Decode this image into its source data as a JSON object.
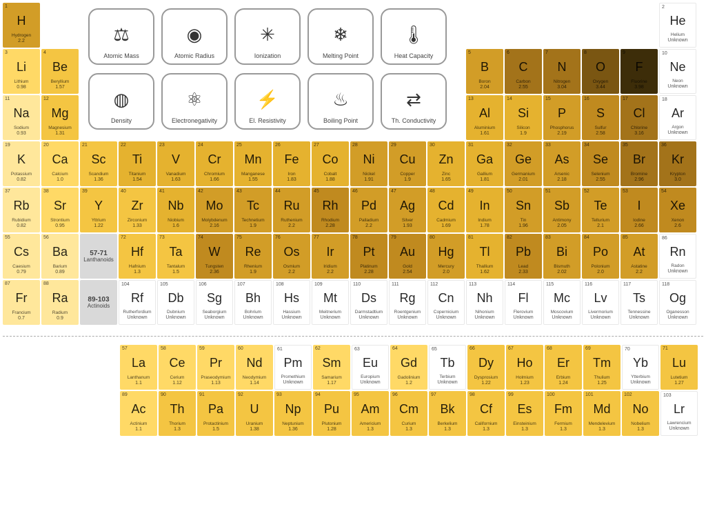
{
  "colors": {
    "white": "#ffffff",
    "grey": "#d9d9d9",
    "border": "#e8e8e8"
  },
  "shade_scale": {
    "0": "#ffffff",
    "1": "#fff1c9",
    "2": "#ffe79b",
    "3": "#ffd966",
    "4": "#f4c542",
    "5": "#e5b22f",
    "6": "#d29d27",
    "7": "#c08a1f",
    "8": "#a3731a",
    "9": "#7a5612",
    "10": "#3d2d09"
  },
  "properties": [
    {
      "label": "Atomic Mass",
      "icon": "⚖"
    },
    {
      "label": "Atomic Radius",
      "icon": "◉"
    },
    {
      "label": "Ionization",
      "icon": "✳"
    },
    {
      "label": "Melting Point",
      "icon": "❄"
    },
    {
      "label": "Heat Capacity",
      "icon": "🌡"
    },
    {
      "label": "Density",
      "icon": "◍"
    },
    {
      "label": "Electronegativity",
      "icon": "⚛"
    },
    {
      "label": "El. Resistivity",
      "icon": "⚡"
    },
    {
      "label": "Boiling Point",
      "icon": "♨"
    },
    {
      "label": "Th. Conductivity",
      "icon": "⇄"
    }
  ],
  "main": [
    [
      {
        "n": 1,
        "s": "H",
        "name": "Hydrogen",
        "v": "2.2",
        "shade": 6
      },
      null,
      null,
      null,
      null,
      null,
      null,
      null,
      null,
      null,
      null,
      null,
      null,
      null,
      null,
      null,
      null,
      {
        "n": 2,
        "s": "He",
        "name": "Helium",
        "v": "Unknown",
        "shade": 0
      }
    ],
    [
      {
        "n": 3,
        "s": "Li",
        "name": "Lithium",
        "v": "0.98",
        "shade": 3
      },
      {
        "n": 4,
        "s": "Be",
        "name": "Beryllium",
        "v": "1.57",
        "shade": 4
      },
      null,
      null,
      null,
      null,
      null,
      null,
      null,
      null,
      null,
      null,
      {
        "n": 5,
        "s": "B",
        "name": "Boron",
        "v": "2.04",
        "shade": 6
      },
      {
        "n": 6,
        "s": "C",
        "name": "Carbon",
        "v": "2.55",
        "shade": 8
      },
      {
        "n": 7,
        "s": "N",
        "name": "Nitrogen",
        "v": "3.04",
        "shade": 8
      },
      {
        "n": 8,
        "s": "O",
        "name": "Oxygen",
        "v": "3.44",
        "shade": 9
      },
      {
        "n": 9,
        "s": "F",
        "name": "Fluorine",
        "v": "3.98",
        "shade": 10
      },
      {
        "n": 10,
        "s": "Ne",
        "name": "Neon",
        "v": "Unknown",
        "shade": 0
      }
    ],
    [
      {
        "n": 11,
        "s": "Na",
        "name": "Sodium",
        "v": "0.93",
        "shade": 2
      },
      {
        "n": 12,
        "s": "Mg",
        "name": "Magnesium",
        "v": "1.31",
        "shade": 4
      },
      null,
      null,
      null,
      null,
      null,
      null,
      null,
      null,
      null,
      null,
      {
        "n": 13,
        "s": "Al",
        "name": "Aluminium",
        "v": "1.61",
        "shade": 5
      },
      {
        "n": 14,
        "s": "Si",
        "name": "Silicon",
        "v": "1.9",
        "shade": 5
      },
      {
        "n": 15,
        "s": "P",
        "name": "Phosphorus",
        "v": "2.19",
        "shade": 6
      },
      {
        "n": 16,
        "s": "S",
        "name": "Sulfur",
        "v": "2.58",
        "shade": 7
      },
      {
        "n": 17,
        "s": "Cl",
        "name": "Chlorine",
        "v": "3.16",
        "shade": 8
      },
      {
        "n": 18,
        "s": "Ar",
        "name": "Argon",
        "v": "Unknown",
        "shade": 0
      }
    ],
    [
      {
        "n": 19,
        "s": "K",
        "name": "Potassium",
        "v": "0.82",
        "shade": 2
      },
      {
        "n": 20,
        "s": "Ca",
        "name": "Calcium",
        "v": "1.0",
        "shade": 3
      },
      {
        "n": 21,
        "s": "Sc",
        "name": "Scandium",
        "v": "1.36",
        "shade": 4
      },
      {
        "n": 22,
        "s": "Ti",
        "name": "Titanium",
        "v": "1.54",
        "shade": 5
      },
      {
        "n": 23,
        "s": "V",
        "name": "Vanadium",
        "v": "1.63",
        "shade": 5
      },
      {
        "n": 24,
        "s": "Cr",
        "name": "Chromium",
        "v": "1.66",
        "shade": 5
      },
      {
        "n": 25,
        "s": "Mn",
        "name": "Manganese",
        "v": "1.55",
        "shade": 5
      },
      {
        "n": 26,
        "s": "Fe",
        "name": "Iron",
        "v": "1.83",
        "shade": 5
      },
      {
        "n": 27,
        "s": "Co",
        "name": "Cobalt",
        "v": "1.88",
        "shade": 5
      },
      {
        "n": 28,
        "s": "Ni",
        "name": "Nickel",
        "v": "1.91",
        "shade": 6
      },
      {
        "n": 29,
        "s": "Cu",
        "name": "Copper",
        "v": "1.9",
        "shade": 6
      },
      {
        "n": 30,
        "s": "Zn",
        "name": "Zinc",
        "v": "1.65",
        "shade": 5
      },
      {
        "n": 31,
        "s": "Ga",
        "name": "Gallium",
        "v": "1.81",
        "shade": 5
      },
      {
        "n": 32,
        "s": "Ge",
        "name": "Germanium",
        "v": "2.01",
        "shade": 6
      },
      {
        "n": 33,
        "s": "As",
        "name": "Arsenic",
        "v": "2.18",
        "shade": 6
      },
      {
        "n": 34,
        "s": "Se",
        "name": "Selenium",
        "v": "2.55",
        "shade": 7
      },
      {
        "n": 35,
        "s": "Br",
        "name": "Bromine",
        "v": "2.96",
        "shade": 8
      },
      {
        "n": 36,
        "s": "Kr",
        "name": "Krypton",
        "v": "3.0",
        "shade": 8
      }
    ],
    [
      {
        "n": 37,
        "s": "Rb",
        "name": "Rubidium",
        "v": "0.82",
        "shade": 2
      },
      {
        "n": 38,
        "s": "Sr",
        "name": "Strontium",
        "v": "0.95",
        "shade": 3
      },
      {
        "n": 39,
        "s": "Y",
        "name": "Yttrium",
        "v": "1.22",
        "shade": 4
      },
      {
        "n": 40,
        "s": "Zr",
        "name": "Zirconium",
        "v": "1.33",
        "shade": 4
      },
      {
        "n": 41,
        "s": "Nb",
        "name": "Niobium",
        "v": "1.6",
        "shade": 5
      },
      {
        "n": 42,
        "s": "Mo",
        "name": "Molybdenum",
        "v": "2.16",
        "shade": 6
      },
      {
        "n": 43,
        "s": "Tc",
        "name": "Technetium",
        "v": "1.9",
        "shade": 6
      },
      {
        "n": 44,
        "s": "Ru",
        "name": "Ruthenium",
        "v": "2.2",
        "shade": 6
      },
      {
        "n": 45,
        "s": "Rh",
        "name": "Rhodium",
        "v": "2.28",
        "shade": 7
      },
      {
        "n": 46,
        "s": "Pd",
        "name": "Palladium",
        "v": "2.2",
        "shade": 6
      },
      {
        "n": 47,
        "s": "Ag",
        "name": "Silver",
        "v": "1.93",
        "shade": 6
      },
      {
        "n": 48,
        "s": "Cd",
        "name": "Cadmium",
        "v": "1.69",
        "shade": 5
      },
      {
        "n": 49,
        "s": "In",
        "name": "Indium",
        "v": "1.78",
        "shade": 5
      },
      {
        "n": 50,
        "s": "Sn",
        "name": "Tin",
        "v": "1.96",
        "shade": 6
      },
      {
        "n": 51,
        "s": "Sb",
        "name": "Antimony",
        "v": "2.05",
        "shade": 6
      },
      {
        "n": 52,
        "s": "Te",
        "name": "Tellurium",
        "v": "2.1",
        "shade": 6
      },
      {
        "n": 53,
        "s": "I",
        "name": "Iodine",
        "v": "2.66",
        "shade": 7
      },
      {
        "n": 54,
        "s": "Xe",
        "name": "Xenon",
        "v": "2.6",
        "shade": 7
      }
    ],
    [
      {
        "n": 55,
        "s": "Cs",
        "name": "Caesium",
        "v": "0.79",
        "shade": 2
      },
      {
        "n": 56,
        "s": "Ba",
        "name": "Barium",
        "v": "0.89",
        "shade": 2
      },
      {
        "range": "57-71",
        "label": "Lanthanoids"
      },
      {
        "n": 72,
        "s": "Hf",
        "name": "Hafnium",
        "v": "1.3",
        "shade": 4
      },
      {
        "n": 73,
        "s": "Ta",
        "name": "Tantalum",
        "v": "1.5",
        "shade": 4
      },
      {
        "n": 74,
        "s": "W",
        "name": "Tungsten",
        "v": "2.36",
        "shade": 7
      },
      {
        "n": 75,
        "s": "Re",
        "name": "Rhenium",
        "v": "1.9",
        "shade": 6
      },
      {
        "n": 76,
        "s": "Os",
        "name": "Osmium",
        "v": "2.2",
        "shade": 6
      },
      {
        "n": 77,
        "s": "Ir",
        "name": "Iridium",
        "v": "2.2",
        "shade": 6
      },
      {
        "n": 78,
        "s": "Pt",
        "name": "Platinum",
        "v": "2.28",
        "shade": 7
      },
      {
        "n": 79,
        "s": "Au",
        "name": "Gold",
        "v": "2.54",
        "shade": 7
      },
      {
        "n": 80,
        "s": "Hg",
        "name": "Mercury",
        "v": "2.0",
        "shade": 6
      },
      {
        "n": 81,
        "s": "Tl",
        "name": "Thallium",
        "v": "1.62",
        "shade": 5
      },
      {
        "n": 82,
        "s": "Pb",
        "name": "Lead",
        "v": "2.33",
        "shade": 7
      },
      {
        "n": 83,
        "s": "Bi",
        "name": "Bismuth",
        "v": "2.02",
        "shade": 6
      },
      {
        "n": 84,
        "s": "Po",
        "name": "Polonium",
        "v": "2.0",
        "shade": 6
      },
      {
        "n": 85,
        "s": "At",
        "name": "Astatine",
        "v": "2.2",
        "shade": 6
      },
      {
        "n": 86,
        "s": "Rn",
        "name": "Radon",
        "v": "Unknown",
        "shade": 0
      }
    ],
    [
      {
        "n": 87,
        "s": "Fr",
        "name": "Francium",
        "v": "0.7",
        "shade": 2
      },
      {
        "n": 88,
        "s": "Ra",
        "name": "Radium",
        "v": "0.9",
        "shade": 2
      },
      {
        "range": "89-103",
        "label": "Actinoids"
      },
      {
        "n": 104,
        "s": "Rf",
        "name": "Rutherfordium",
        "v": "Unknown",
        "shade": 0
      },
      {
        "n": 105,
        "s": "Db",
        "name": "Dubnium",
        "v": "Unknown",
        "shade": 0
      },
      {
        "n": 106,
        "s": "Sg",
        "name": "Seaborgium",
        "v": "Unknown",
        "shade": 0
      },
      {
        "n": 107,
        "s": "Bh",
        "name": "Bohrium",
        "v": "Unknown",
        "shade": 0
      },
      {
        "n": 108,
        "s": "Hs",
        "name": "Hassium",
        "v": "Unknown",
        "shade": 0
      },
      {
        "n": 109,
        "s": "Mt",
        "name": "Meitnerium",
        "v": "Unknown",
        "shade": 0
      },
      {
        "n": 110,
        "s": "Ds",
        "name": "Darmstadtium",
        "v": "Unknown",
        "shade": 0
      },
      {
        "n": 111,
        "s": "Rg",
        "name": "Roentgenium",
        "v": "Unknown",
        "shade": 0
      },
      {
        "n": 112,
        "s": "Cn",
        "name": "Copernicium",
        "v": "Unknown",
        "shade": 0
      },
      {
        "n": 113,
        "s": "Nh",
        "name": "Nihonium",
        "v": "Unknown",
        "shade": 0
      },
      {
        "n": 114,
        "s": "Fl",
        "name": "Flerovium",
        "v": "Unknown",
        "shade": 0
      },
      {
        "n": 115,
        "s": "Mc",
        "name": "Moscovium",
        "v": "Unknown",
        "shade": 0
      },
      {
        "n": 116,
        "s": "Lv",
        "name": "Livermorium",
        "v": "Unknown",
        "shade": 0
      },
      {
        "n": 117,
        "s": "Ts",
        "name": "Tennessine",
        "v": "Unknown",
        "shade": 0
      },
      {
        "n": 118,
        "s": "Og",
        "name": "Oganesson",
        "v": "Unknown",
        "shade": 0
      }
    ]
  ],
  "lanthanoids": [
    {
      "n": 57,
      "s": "La",
      "name": "Lanthanum",
      "v": "1.1",
      "shade": 3
    },
    {
      "n": 58,
      "s": "Ce",
      "name": "Cerium",
      "v": "1.12",
      "shade": 3
    },
    {
      "n": 59,
      "s": "Pr",
      "name": "Praseodymium",
      "v": "1.13",
      "shade": 3
    },
    {
      "n": 60,
      "s": "Nd",
      "name": "Neodymium",
      "v": "1.14",
      "shade": 3
    },
    {
      "n": 61,
      "s": "Pm",
      "name": "Promethium",
      "v": "Unknown",
      "shade": 0
    },
    {
      "n": 62,
      "s": "Sm",
      "name": "Samarium",
      "v": "1.17",
      "shade": 3
    },
    {
      "n": 63,
      "s": "Eu",
      "name": "Europium",
      "v": "Unknown",
      "shade": 0
    },
    {
      "n": 64,
      "s": "Gd",
      "name": "Gadolinium",
      "v": "1.2",
      "shade": 3
    },
    {
      "n": 65,
      "s": "Tb",
      "name": "Terbium",
      "v": "Unknown",
      "shade": 0
    },
    {
      "n": 66,
      "s": "Dy",
      "name": "Dysprosium",
      "v": "1.22",
      "shade": 4
    },
    {
      "n": 67,
      "s": "Ho",
      "name": "Holmium",
      "v": "1.23",
      "shade": 4
    },
    {
      "n": 68,
      "s": "Er",
      "name": "Erbium",
      "v": "1.24",
      "shade": 4
    },
    {
      "n": 69,
      "s": "Tm",
      "name": "Thulium",
      "v": "1.25",
      "shade": 4
    },
    {
      "n": 70,
      "s": "Yb",
      "name": "Ytterbium",
      "v": "Unknown",
      "shade": 0
    },
    {
      "n": 71,
      "s": "Lu",
      "name": "Lutetium",
      "v": "1.27",
      "shade": 4
    }
  ],
  "actinoids": [
    {
      "n": 89,
      "s": "Ac",
      "name": "Actinium",
      "v": "1.1",
      "shade": 3
    },
    {
      "n": 90,
      "s": "Th",
      "name": "Thorium",
      "v": "1.3",
      "shade": 4
    },
    {
      "n": 91,
      "s": "Pa",
      "name": "Protactinium",
      "v": "1.5",
      "shade": 4
    },
    {
      "n": 92,
      "s": "U",
      "name": "Uranium",
      "v": "1.38",
      "shade": 4
    },
    {
      "n": 93,
      "s": "Np",
      "name": "Neptunium",
      "v": "1.36",
      "shade": 4
    },
    {
      "n": 94,
      "s": "Pu",
      "name": "Plutonium",
      "v": "1.28",
      "shade": 4
    },
    {
      "n": 95,
      "s": "Am",
      "name": "Americium",
      "v": "1.3",
      "shade": 4
    },
    {
      "n": 96,
      "s": "Cm",
      "name": "Curium",
      "v": "1.3",
      "shade": 4
    },
    {
      "n": 97,
      "s": "Bk",
      "name": "Berkelium",
      "v": "1.3",
      "shade": 4
    },
    {
      "n": 98,
      "s": "Cf",
      "name": "Californium",
      "v": "1.3",
      "shade": 4
    },
    {
      "n": 99,
      "s": "Es",
      "name": "Einsteinium",
      "v": "1.3",
      "shade": 4
    },
    {
      "n": 100,
      "s": "Fm",
      "name": "Fermium",
      "v": "1.3",
      "shade": 4
    },
    {
      "n": 101,
      "s": "Md",
      "name": "Mendelevium",
      "v": "1.3",
      "shade": 4
    },
    {
      "n": 102,
      "s": "No",
      "name": "Nobelium",
      "v": "1.3",
      "shade": 4
    },
    {
      "n": 103,
      "s": "Lr",
      "name": "Lawrencium",
      "v": "Unknown",
      "shade": 0
    }
  ]
}
